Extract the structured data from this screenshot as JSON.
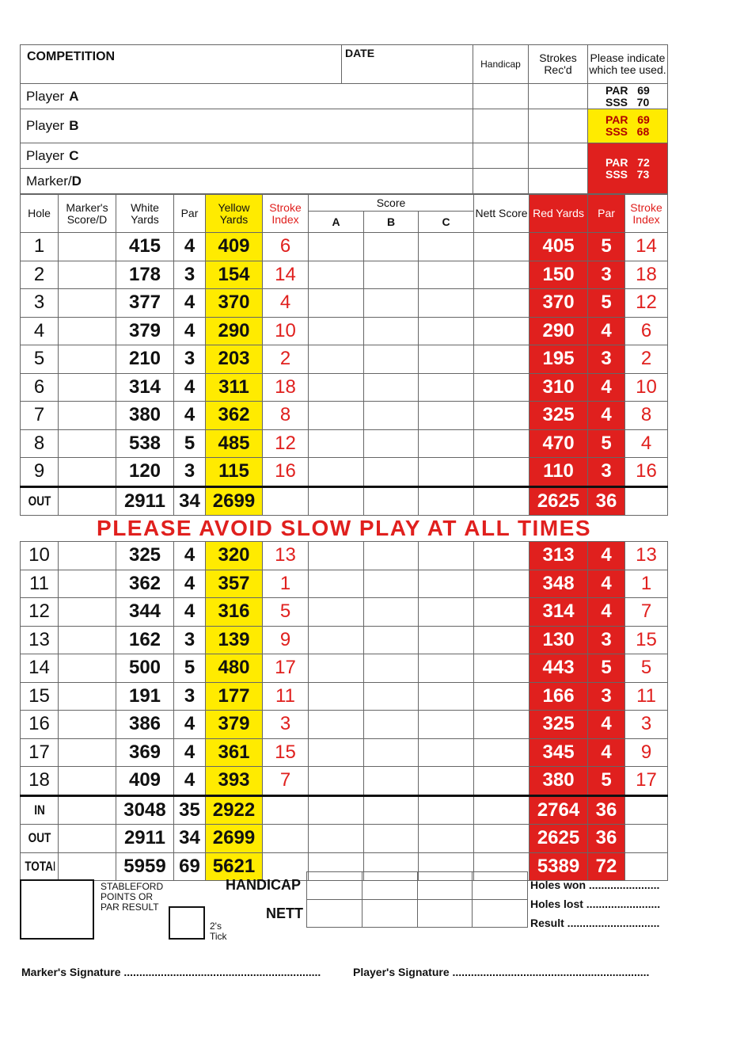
{
  "header": {
    "competition_label": "COMPETITION",
    "date_label": "DATE",
    "handicap_label": "Handicap",
    "strokes_label": "Strokes Rec'd",
    "tee_label": "Please indicate which tee used."
  },
  "players": [
    {
      "prefix": "Player",
      "letter": "A"
    },
    {
      "prefix": "Player",
      "letter": "B"
    },
    {
      "prefix": "Player",
      "letter": "C"
    },
    {
      "prefix": "Marker/",
      "letter": "D"
    }
  ],
  "tees": [
    {
      "line1": "PAR   69",
      "line2": "SSS   70",
      "color": "#ffffff"
    },
    {
      "line1": "PAR   69",
      "line2": "SSS   68",
      "color": "#ffeb00"
    },
    {
      "line1": "PAR   72",
      "line2": "SSS   73",
      "color": "#e0201e"
    }
  ],
  "columns": {
    "hole": "Hole",
    "marker": "Marker's Score/D",
    "white": "White Yards",
    "par": "Par",
    "yellow": "Yellow Yards",
    "stroke": "Stroke Index",
    "score": "Score",
    "a": "A",
    "b": "B",
    "c": "C",
    "nett": "Nett Score",
    "red": "Red Yards",
    "rpar": "Par",
    "rstroke": "Stroke Index"
  },
  "front": [
    {
      "hole": "1",
      "white": "415",
      "par": "4",
      "yellow": "409",
      "si": "6",
      "red": "405",
      "rpar": "5",
      "rsi": "14"
    },
    {
      "hole": "2",
      "white": "178",
      "par": "3",
      "yellow": "154",
      "si": "14",
      "red": "150",
      "rpar": "3",
      "rsi": "18"
    },
    {
      "hole": "3",
      "white": "377",
      "par": "4",
      "yellow": "370",
      "si": "4",
      "red": "370",
      "rpar": "5",
      "rsi": "12"
    },
    {
      "hole": "4",
      "white": "379",
      "par": "4",
      "yellow": "290",
      "si": "10",
      "red": "290",
      "rpar": "4",
      "rsi": "6"
    },
    {
      "hole": "5",
      "white": "210",
      "par": "3",
      "yellow": "203",
      "si": "2",
      "red": "195",
      "rpar": "3",
      "rsi": "2"
    },
    {
      "hole": "6",
      "white": "314",
      "par": "4",
      "yellow": "311",
      "si": "18",
      "red": "310",
      "rpar": "4",
      "rsi": "10"
    },
    {
      "hole": "7",
      "white": "380",
      "par": "4",
      "yellow": "362",
      "si": "8",
      "red": "325",
      "rpar": "4",
      "rsi": "8"
    },
    {
      "hole": "8",
      "white": "538",
      "par": "5",
      "yellow": "485",
      "si": "12",
      "red": "470",
      "rpar": "5",
      "rsi": "4"
    },
    {
      "hole": "9",
      "white": "120",
      "par": "3",
      "yellow": "115",
      "si": "16",
      "red": "110",
      "rpar": "3",
      "rsi": "16"
    }
  ],
  "out_total": {
    "label": "OUT",
    "white": "2911",
    "par": "34",
    "yellow": "2699",
    "red": "2625",
    "rpar": "36"
  },
  "slow_play": "PLEASE AVOID SLOW PLAY AT ALL TIMES",
  "back": [
    {
      "hole": "10",
      "white": "325",
      "par": "4",
      "yellow": "320",
      "si": "13",
      "red": "313",
      "rpar": "4",
      "rsi": "13"
    },
    {
      "hole": "11",
      "white": "362",
      "par": "4",
      "yellow": "357",
      "si": "1",
      "red": "348",
      "rpar": "4",
      "rsi": "1"
    },
    {
      "hole": "12",
      "white": "344",
      "par": "4",
      "yellow": "316",
      "si": "5",
      "red": "314",
      "rpar": "4",
      "rsi": "7"
    },
    {
      "hole": "13",
      "white": "162",
      "par": "3",
      "yellow": "139",
      "si": "9",
      "red": "130",
      "rpar": "3",
      "rsi": "15"
    },
    {
      "hole": "14",
      "white": "500",
      "par": "5",
      "yellow": "480",
      "si": "17",
      "red": "443",
      "rpar": "5",
      "rsi": "5"
    },
    {
      "hole": "15",
      "white": "191",
      "par": "3",
      "yellow": "177",
      "si": "11",
      "red": "166",
      "rpar": "3",
      "rsi": "11"
    },
    {
      "hole": "16",
      "white": "386",
      "par": "4",
      "yellow": "379",
      "si": "3",
      "red": "325",
      "rpar": "4",
      "rsi": "3"
    },
    {
      "hole": "17",
      "white": "369",
      "par": "4",
      "yellow": "361",
      "si": "15",
      "red": "345",
      "rpar": "4",
      "rsi": "9"
    },
    {
      "hole": "18",
      "white": "409",
      "par": "4",
      "yellow": "393",
      "si": "7",
      "red": "380",
      "rpar": "5",
      "rsi": "17"
    }
  ],
  "totals": [
    {
      "label": "IN",
      "white": "3048",
      "par": "35",
      "yellow": "2922",
      "red": "2764",
      "rpar": "36"
    },
    {
      "label": "OUT",
      "white": "2911",
      "par": "34",
      "yellow": "2699",
      "red": "2625",
      "rpar": "36"
    },
    {
      "label": "TOTAL",
      "white": "5959",
      "par": "69",
      "yellow": "5621",
      "red": "5389",
      "rpar": "72"
    }
  ],
  "footer": {
    "stableford": "STABLEFORD POINTS OR PAR RESULT",
    "twos": "2's Tick",
    "handicap": "HANDICAP",
    "nett": "NETT",
    "holes_won": "Holes won .......................",
    "holes_lost": "Holes lost ........................",
    "result": "Result ..............................",
    "marker_sig": "Marker's Signature ................................................................",
    "player_sig": "Player's Signature ................................................................"
  }
}
